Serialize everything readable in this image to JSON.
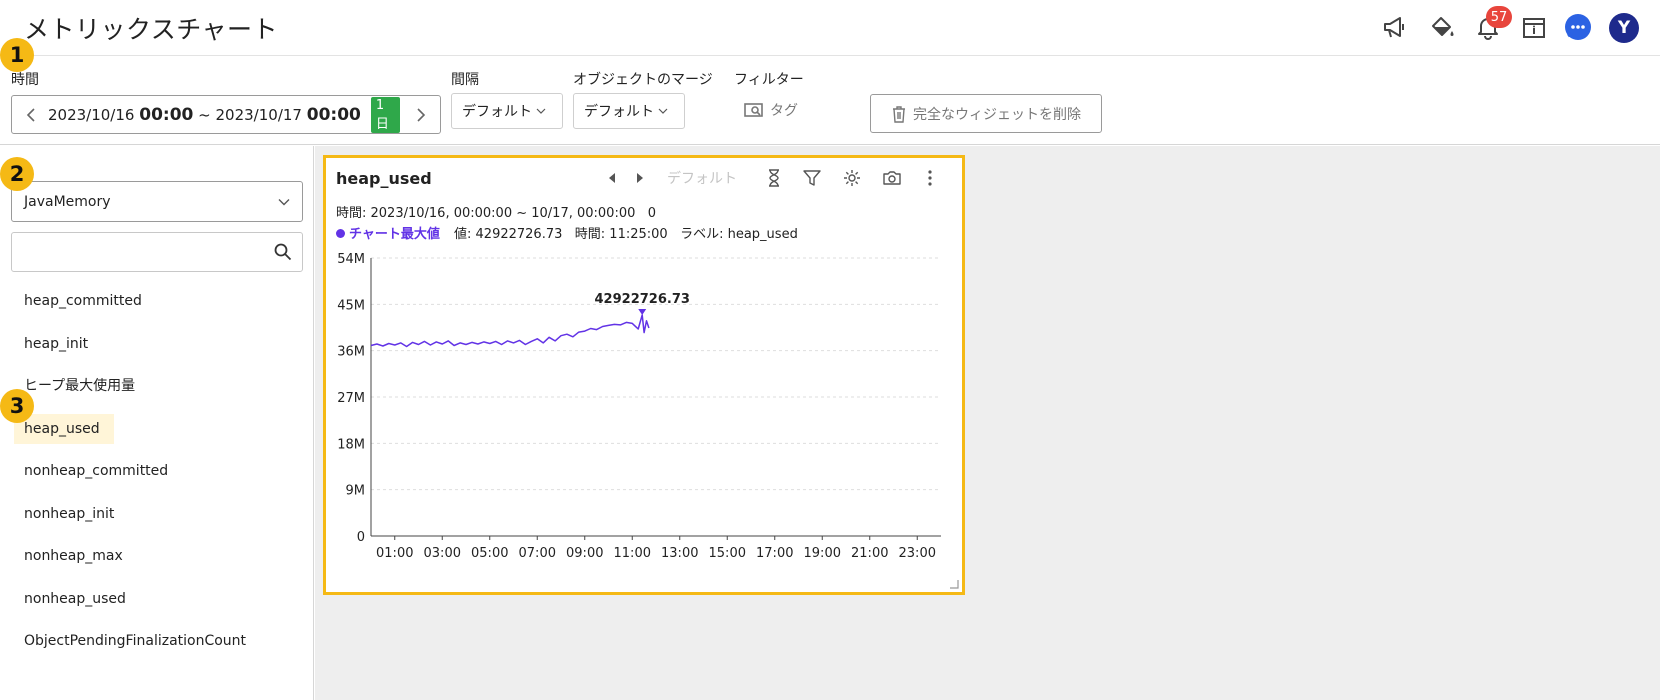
{
  "header": {
    "title": "メトリックスチャート",
    "notifications_count": "57",
    "avatar_initial": "Y",
    "icons": [
      "megaphone-icon",
      "paint-bucket-icon",
      "bell-icon",
      "calendar-info-icon",
      "chat-icon"
    ]
  },
  "steps": [
    "1",
    "2",
    "3"
  ],
  "toolbar": {
    "time_label": "時間",
    "time_start_date": "2023/10/16",
    "time_start_clock": "00:00",
    "time_sep": "~",
    "time_end_date": "2023/10/17",
    "time_end_clock": "00:00",
    "time_span": "1日",
    "interval_label": "間隔",
    "interval_value": "デフォルト",
    "merge_label": "オブジェクトのマージ",
    "merge_value": "デフォルト",
    "filter_label": "フィルター",
    "tag_label": "タグ",
    "delete_label": "完全なウィジェットを削除"
  },
  "sidebar": {
    "selected_category": "JavaMemory",
    "search_placeholder": "",
    "metrics": [
      {
        "label": "heap_committed"
      },
      {
        "label": "heap_init"
      },
      {
        "label": "ヒープ最大使用量"
      },
      {
        "label": "heap_used",
        "active": true
      },
      {
        "label": "nonheap_committed"
      },
      {
        "label": "nonheap_init"
      },
      {
        "label": "nonheap_max"
      },
      {
        "label": "nonheap_used"
      },
      {
        "label": "ObjectPendingFinalizationCount"
      }
    ]
  },
  "widget": {
    "title": "heap_used",
    "mode_label": "デフォルト",
    "time_text": "時間: 2023/10/16, 00:00:00 ~ 10/17, 00:00:00",
    "time_count": "0",
    "legend_series": "チャート最大値",
    "legend_value": "値: 42922726.73",
    "legend_time": "時間: 11:25:00",
    "legend_label": "ラベル: heap_used",
    "accent_color": "#6233e6",
    "border_color": "#f5b915"
  },
  "chart_data": {
    "type": "line",
    "series": [
      {
        "name": "heap_used",
        "color": "#6233e6",
        "points": [
          [
            0.0,
            37.0
          ],
          [
            0.25,
            37.3
          ],
          [
            0.5,
            36.9
          ],
          [
            0.75,
            37.4
          ],
          [
            1.0,
            37.1
          ],
          [
            1.25,
            37.5
          ],
          [
            1.5,
            36.8
          ],
          [
            1.75,
            37.6
          ],
          [
            2.0,
            37.2
          ],
          [
            2.25,
            37.8
          ],
          [
            2.5,
            37.1
          ],
          [
            2.75,
            37.7
          ],
          [
            3.0,
            37.3
          ],
          [
            3.25,
            37.9
          ],
          [
            3.5,
            37.0
          ],
          [
            3.75,
            37.5
          ],
          [
            4.0,
            37.2
          ],
          [
            4.25,
            37.6
          ],
          [
            4.5,
            37.3
          ],
          [
            4.75,
            37.7
          ],
          [
            5.0,
            37.4
          ],
          [
            5.25,
            37.8
          ],
          [
            5.5,
            37.2
          ],
          [
            5.75,
            37.9
          ],
          [
            6.0,
            37.5
          ],
          [
            6.25,
            38.0
          ],
          [
            6.5,
            37.2
          ],
          [
            6.75,
            37.8
          ],
          [
            7.0,
            38.3
          ],
          [
            7.25,
            37.5
          ],
          [
            7.5,
            38.6
          ],
          [
            7.75,
            37.9
          ],
          [
            8.0,
            38.9
          ],
          [
            8.25,
            39.2
          ],
          [
            8.5,
            38.7
          ],
          [
            8.75,
            39.6
          ],
          [
            9.0,
            39.8
          ],
          [
            9.25,
            40.3
          ],
          [
            9.5,
            40.1
          ],
          [
            9.75,
            40.7
          ],
          [
            10.0,
            40.9
          ],
          [
            10.25,
            41.1
          ],
          [
            10.5,
            41.0
          ],
          [
            10.75,
            41.5
          ],
          [
            11.0,
            41.3
          ],
          [
            11.25,
            40.2
          ],
          [
            11.42,
            42.92
          ],
          [
            11.5,
            39.5
          ],
          [
            11.6,
            41.8
          ],
          [
            11.7,
            40.4
          ]
        ]
      }
    ],
    "max_point": {
      "x": 11.42,
      "y": 42922726.73,
      "label": "42922726.73"
    },
    "x_ticks": [
      "01:00",
      "03:00",
      "05:00",
      "07:00",
      "09:00",
      "11:00",
      "13:00",
      "15:00",
      "17:00",
      "19:00",
      "21:00",
      "23:00"
    ],
    "x_tick_values": [
      1,
      3,
      5,
      7,
      9,
      11,
      13,
      15,
      17,
      19,
      21,
      23
    ],
    "xlim": [
      0,
      24
    ],
    "y_ticks": [
      "0",
      "9M",
      "18M",
      "27M",
      "36M",
      "45M",
      "54M"
    ],
    "y_tick_values": [
      0,
      9,
      18,
      27,
      36,
      45,
      54
    ],
    "ylim": [
      0,
      54
    ],
    "grid": true
  }
}
